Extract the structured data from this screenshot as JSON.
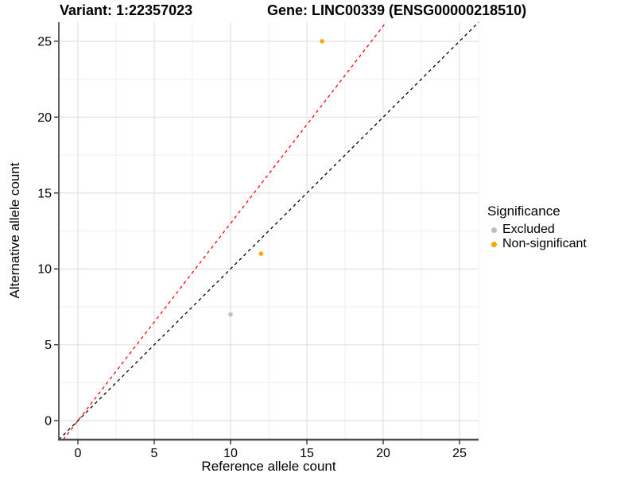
{
  "titles": {
    "variant": "Variant: 1:22357023",
    "gene": "Gene: LINC00339 (ENSG00000218510)"
  },
  "chart_data": {
    "type": "scatter",
    "xlabel": "Reference allele count",
    "ylabel": "Alternative allele count",
    "xlim": [
      -1.25,
      26.25
    ],
    "ylim": [
      -1.25,
      26.25
    ],
    "xticks": [
      0,
      5,
      10,
      15,
      20,
      25
    ],
    "yticks": [
      0,
      5,
      10,
      15,
      20,
      25
    ],
    "xticks_minor": [
      2.5,
      7.5,
      12.5,
      17.5,
      22.5
    ],
    "yticks_minor": [
      2.5,
      7.5,
      12.5,
      17.5,
      22.5
    ],
    "grid": true,
    "points": [
      {
        "x": 16,
        "y": 25,
        "significance": "Non-significant",
        "color": "#FFA500"
      },
      {
        "x": 12,
        "y": 11,
        "significance": "Non-significant",
        "color": "#FFA500"
      },
      {
        "x": 10,
        "y": 7,
        "significance": "Excluded",
        "color": "#BEBEBE"
      }
    ],
    "ablines": [
      {
        "name": "identity-line",
        "slope": 1,
        "intercept": 0,
        "color": "#000000",
        "style": "dashed"
      },
      {
        "name": "expected-ratio-line",
        "slope": 1.3,
        "intercept": 0,
        "color": "#FF0000",
        "style": "dashed"
      }
    ],
    "legend": {
      "title": "Significance",
      "position": "right",
      "entries": [
        {
          "label": "Excluded",
          "color": "#BEBEBE"
        },
        {
          "label": "Non-significant",
          "color": "#FFA500"
        }
      ]
    }
  },
  "colors": {
    "grid_major": "#E2E2E2",
    "grid_minor": "#EFEFEF",
    "axis_line": "#4D4D4D",
    "tick": "#333333",
    "text": "#000000",
    "background": "#FFFFFF"
  }
}
